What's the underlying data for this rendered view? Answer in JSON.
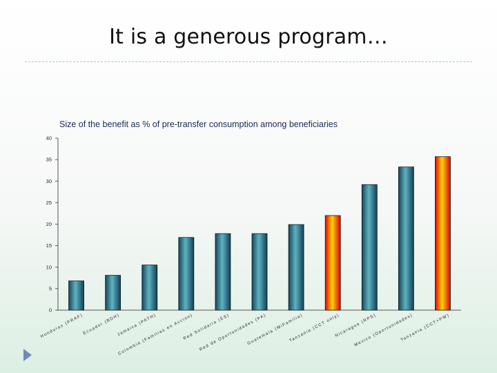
{
  "slide": {
    "title": "It is a generous program…"
  },
  "colors": {
    "bar_teal": "#2e7f93",
    "bar_highlight": "#ff6600",
    "axis": "#555555",
    "nav_arrow": "#6f8ab8"
  },
  "icons": {
    "nav": "play-arrow-icon"
  },
  "chart_data": {
    "type": "bar",
    "title": "Size of  the  benefit as % of pre-transfer consumption among beneficiaries",
    "xlabel": "",
    "ylabel": "",
    "ylim": [
      0,
      40
    ],
    "yticks": [
      0,
      5,
      10,
      15,
      20,
      25,
      30,
      35,
      40
    ],
    "grid": false,
    "categories": [
      "Honduras (PRAF)",
      "Ecuador (BDH)",
      "Jamaica (PATH)",
      "Colombia (Familias en Accion)",
      "Red Solidaria (ES)",
      "Red de Oportunidades (PA)",
      "Guatemala (MiFamilia)",
      "Tanzania (CCT only)",
      "Nicaragua (RPS)",
      "Mexico (Oportunidades)",
      "Tanzania (CCT+PW)"
    ],
    "values": [
      6.8,
      8.1,
      10.5,
      16.9,
      17.8,
      17.8,
      19.9,
      22.0,
      29.2,
      33.3,
      35.7
    ],
    "highlight": [
      false,
      false,
      false,
      false,
      false,
      false,
      false,
      true,
      false,
      false,
      true
    ]
  }
}
